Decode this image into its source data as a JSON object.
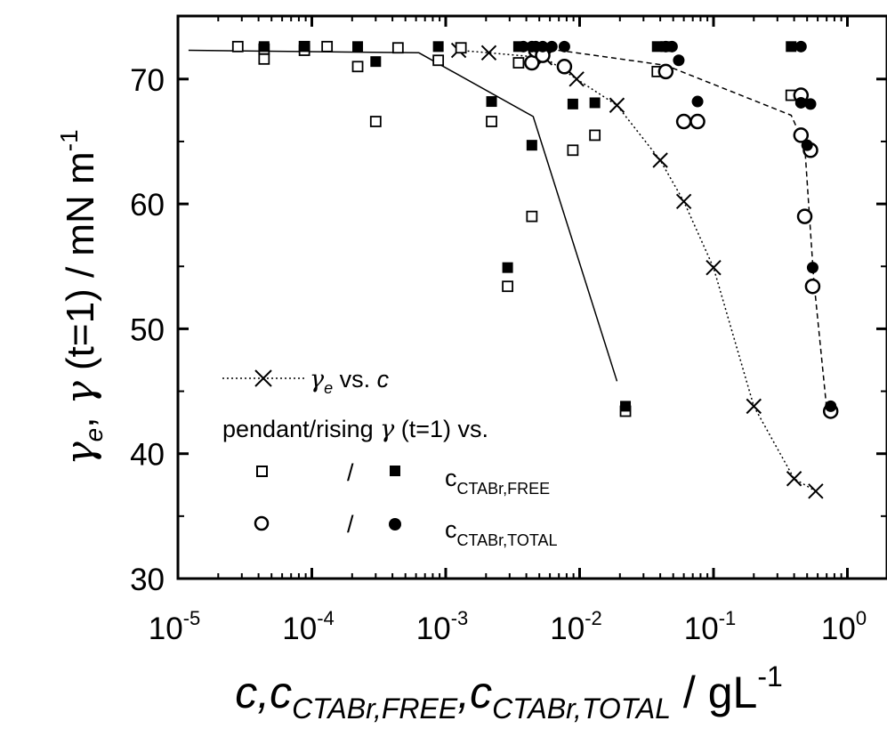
{
  "chart_data": {
    "type": "scatter",
    "x_scale": "log",
    "xlim": [
      1e-05,
      2
    ],
    "ylim": [
      30,
      75
    ],
    "x_ticks": [
      {
        "value": 1e-05,
        "base": "10",
        "exp": "-5"
      },
      {
        "value": 0.0001,
        "base": "10",
        "exp": "-4"
      },
      {
        "value": 0.001,
        "base": "10",
        "exp": "-3"
      },
      {
        "value": 0.01,
        "base": "10",
        "exp": "-2"
      },
      {
        "value": 0.1,
        "base": "10",
        "exp": "-1"
      },
      {
        "value": 1,
        "base": "10",
        "exp": "0"
      }
    ],
    "y_ticks": [
      {
        "value": 30,
        "label": "30"
      },
      {
        "value": 40,
        "label": "40"
      },
      {
        "value": 50,
        "label": "50"
      },
      {
        "value": 60,
        "label": "60"
      },
      {
        "value": 70,
        "label": "70"
      }
    ],
    "xlabel": {
      "c": "c",
      "sep1": ",",
      "c2": "c",
      "sub_free": "CTABr,FREE",
      "sep2": ",",
      "c3": "c",
      "sub_total": "CTABr,TOTAL",
      "unit": " / gL",
      "unit_exp": "-1"
    },
    "ylabel": {
      "g1": "γ",
      "g1_sub": "e",
      "comma": ",",
      "g2": " γ",
      "rest": " (t=1) / mN m",
      "exp": "-1"
    },
    "legend": {
      "placement": "lower-left",
      "row1": {
        "gamma": "γ",
        "gamma_sub": "e",
        "text": " vs. ",
        "c": "c"
      },
      "row2": {
        "text": "pendant/rising ",
        "gamma": "γ",
        "tail": " (t=1) vs."
      },
      "slash": "/",
      "row3": {
        "c": "c",
        "sub": "CTABr,FREE"
      },
      "row4": {
        "c": "c",
        "sub": "CTABr,TOTAL"
      }
    },
    "series": [
      {
        "name": "γe vs. c",
        "marker": "x",
        "line": "dotted",
        "points": [
          [
            0.00125,
            72.3
          ],
          [
            0.0021,
            72.1
          ],
          [
            0.0055,
            71.7
          ],
          [
            0.0095,
            70.0
          ],
          [
            0.019,
            67.9
          ],
          [
            0.04,
            63.5
          ],
          [
            0.06,
            60.2
          ],
          [
            0.1,
            54.9
          ],
          [
            0.2,
            43.8
          ],
          [
            0.4,
            38.0
          ],
          [
            0.58,
            37.0
          ]
        ]
      },
      {
        "name": "pendant/rising γ (t=1) vs. cCTABr,FREE (open)",
        "marker": "open-square",
        "points": [
          [
            2.8e-05,
            72.6
          ],
          [
            4.4e-05,
            72.4
          ],
          [
            4.4e-05,
            71.6
          ],
          [
            8.8e-05,
            72.6
          ],
          [
            8.8e-05,
            72.3
          ],
          [
            0.00013,
            72.6
          ],
          [
            0.00022,
            71.0
          ],
          [
            0.0003,
            66.6
          ],
          [
            0.00044,
            72.5
          ],
          [
            0.00088,
            71.5
          ],
          [
            0.0013,
            72.5
          ],
          [
            0.0022,
            66.6
          ],
          [
            0.0029,
            53.4
          ],
          [
            0.0035,
            71.3
          ],
          [
            0.0044,
            59.0
          ],
          [
            0.0089,
            64.3
          ],
          [
            0.013,
            65.5
          ],
          [
            0.022,
            43.4
          ],
          [
            0.038,
            70.6
          ],
          [
            0.38,
            68.7
          ]
        ]
      },
      {
        "name": "pendant/rising γ (t=1) vs. cCTABr,FREE (filled)",
        "marker": "filled-square",
        "points": [
          [
            4.4e-05,
            72.6
          ],
          [
            8.8e-05,
            72.6
          ],
          [
            0.00022,
            72.6
          ],
          [
            0.0003,
            71.4
          ],
          [
            0.00088,
            72.6
          ],
          [
            0.0022,
            68.2
          ],
          [
            0.0029,
            54.9
          ],
          [
            0.0035,
            72.6
          ],
          [
            0.0044,
            64.7
          ],
          [
            0.0089,
            68.0
          ],
          [
            0.013,
            68.1
          ],
          [
            0.022,
            43.8
          ],
          [
            0.038,
            72.6
          ],
          [
            0.044,
            72.6
          ],
          [
            0.38,
            72.6
          ]
        ]
      },
      {
        "name": "pendant/rising γ (t=1) vs. cCTABr,TOTAL (open)",
        "marker": "open-circle",
        "points": [
          [
            0.0044,
            71.3
          ],
          [
            0.0047,
            72.3
          ],
          [
            0.0053,
            71.9
          ],
          [
            0.0077,
            71.0
          ],
          [
            0.044,
            70.6
          ],
          [
            0.06,
            66.6
          ],
          [
            0.076,
            66.6
          ],
          [
            0.45,
            68.7
          ],
          [
            0.45,
            65.5
          ],
          [
            0.48,
            59.0
          ],
          [
            0.53,
            64.3
          ],
          [
            0.55,
            53.4
          ],
          [
            0.75,
            43.4
          ]
        ]
      },
      {
        "name": "pendant/rising γ (t=1) vs. cCTABr,TOTAL (filled)",
        "marker": "filled-circle",
        "points": [
          [
            0.0038,
            72.6
          ],
          [
            0.0044,
            72.6
          ],
          [
            0.0047,
            72.6
          ],
          [
            0.0053,
            72.6
          ],
          [
            0.0062,
            72.6
          ],
          [
            0.0077,
            72.6
          ],
          [
            0.044,
            72.6
          ],
          [
            0.049,
            72.6
          ],
          [
            0.055,
            71.5
          ],
          [
            0.076,
            68.2
          ],
          [
            0.45,
            72.6
          ],
          [
            0.45,
            68.1
          ],
          [
            0.5,
            64.7
          ],
          [
            0.53,
            68.0
          ],
          [
            0.55,
            54.9
          ],
          [
            0.75,
            43.8
          ]
        ]
      }
    ],
    "guide_lines": [
      {
        "style": "solid",
        "points": [
          [
            1.2e-05,
            72.3
          ],
          [
            0.00063,
            72.1
          ],
          [
            0.0045,
            67.0
          ],
          [
            0.019,
            45.8
          ]
        ]
      },
      {
        "style": "dotted",
        "points": [
          [
            0.00125,
            72.3
          ],
          [
            0.0021,
            72.1
          ],
          [
            0.0055,
            71.7
          ],
          [
            0.0095,
            70.0
          ],
          [
            0.019,
            67.9
          ],
          [
            0.04,
            63.5
          ],
          [
            0.06,
            60.2
          ],
          [
            0.1,
            54.9
          ],
          [
            0.2,
            43.8
          ],
          [
            0.4,
            38.0
          ],
          [
            0.58,
            37.0
          ]
        ]
      },
      {
        "style": "dashed",
        "points": [
          [
            0.0044,
            72.6
          ],
          [
            0.044,
            71.1
          ],
          [
            0.38,
            67.1
          ],
          [
            0.48,
            64.7
          ],
          [
            0.56,
            54.0
          ],
          [
            0.7,
            43.6
          ]
        ]
      }
    ]
  }
}
